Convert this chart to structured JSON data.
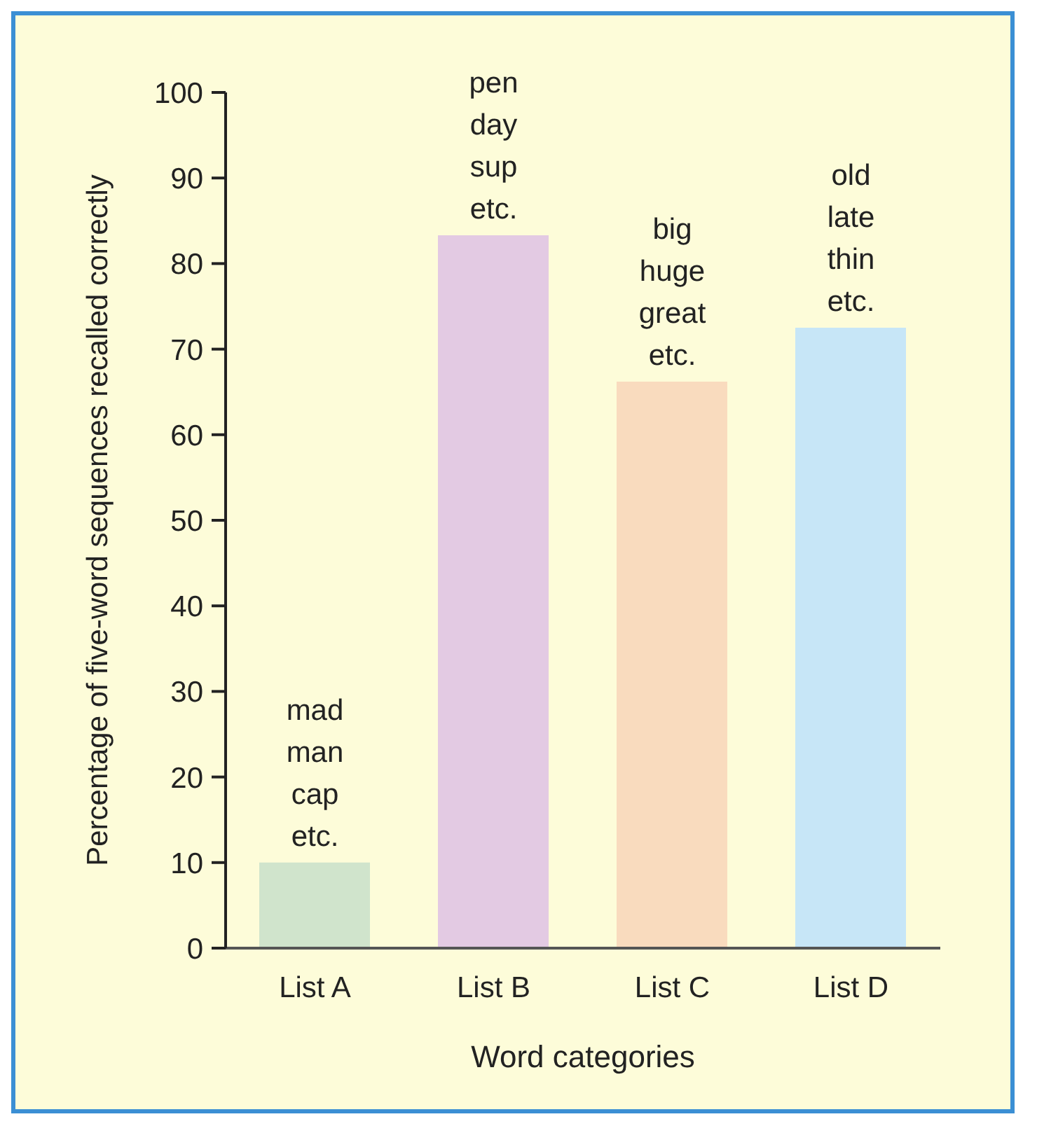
{
  "chart_data": {
    "type": "bar",
    "xlabel": "Word categories",
    "ylabel": "Percentage of five-word sequences recalled correctly",
    "categories": [
      "List A",
      "List B",
      "List C",
      "List D"
    ],
    "values": [
      10,
      83.3,
      66.2,
      72.5
    ],
    "colors": [
      "#d0e4cc",
      "#e3cae3",
      "#f9dbbe",
      "#c7e6f7"
    ],
    "ylim": [
      0,
      100
    ],
    "yticks": [
      0,
      10,
      20,
      30,
      40,
      50,
      60,
      70,
      80,
      90,
      100
    ],
    "grid": false,
    "legend": false,
    "annotations": [
      {
        "text": "mad\nman\ncap\netc.",
        "x": "List A",
        "y": 10
      },
      {
        "text": "pen\nday\nsup\netc.",
        "x": "List B",
        "y": 83.3
      },
      {
        "text": "big\nhuge\ngreat\netc.",
        "x": "List C",
        "y": 66.2
      },
      {
        "text": "old\nlate\nthin\netc.",
        "x": "List D",
        "y": 72.5
      }
    ]
  }
}
